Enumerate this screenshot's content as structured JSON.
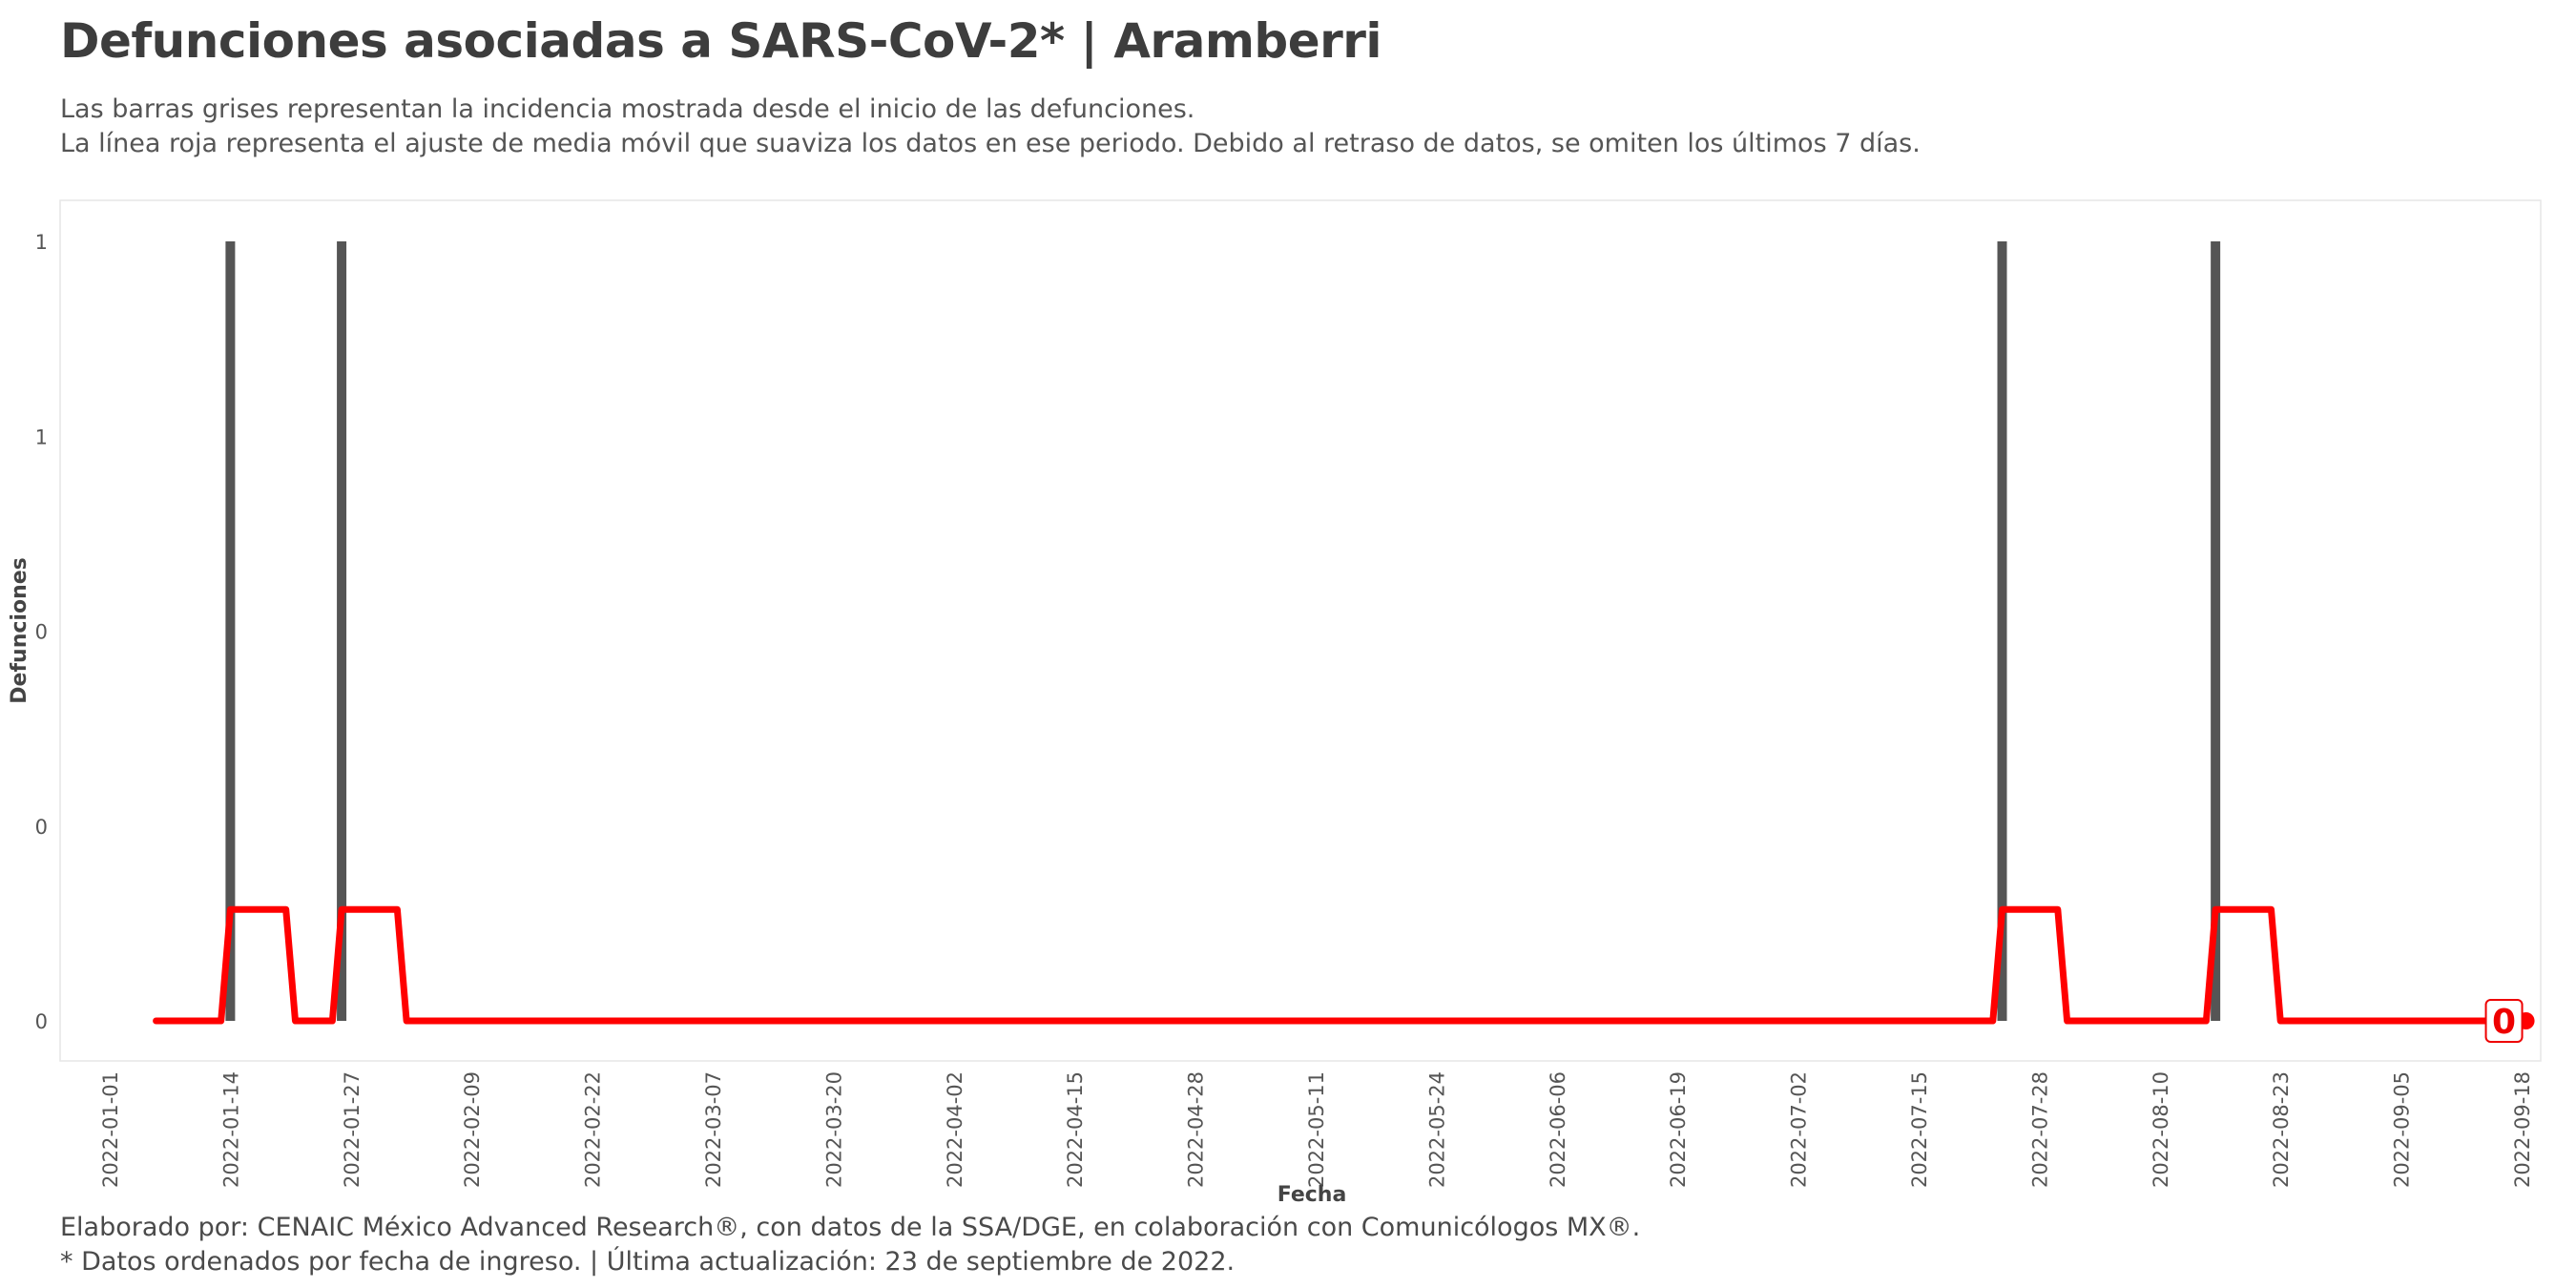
{
  "header": {
    "title": "Defunciones asociadas a SARS-CoV-2* | Aramberri",
    "subtitle_line1": "Las barras grises representan la incidencia mostrada desde el inicio de las defunciones.",
    "subtitle_line2": "La línea roja representa el ajuste de media móvil que suaviza los datos en ese periodo. Debido al retraso de datos, se omiten los últimos 7 días."
  },
  "footer": {
    "caption_line1": "Elaborado por: CENAIC México Advanced Research®, con datos de la SSA/DGE, en colaboración con Comunicólogos MX®.",
    "caption_line2": "* Datos ordenados por fecha de ingreso. | Última actualización: 23 de septiembre de 2022."
  },
  "chart_data": {
    "type": "bar",
    "xlabel": "Fecha",
    "ylabel": "Defunciones",
    "x_range": [
      "2022-01-01",
      "2022-09-18"
    ],
    "y_range": [
      0,
      1
    ],
    "y_tick_values": [
      0,
      0.25,
      0.5,
      0.75,
      1
    ],
    "y_tick_labels": [
      "0",
      "0",
      "0",
      "1",
      "1"
    ],
    "x_tick_labels": [
      "2022-01-01",
      "2022-01-14",
      "2022-01-27",
      "2022-02-09",
      "2022-02-22",
      "2022-03-07",
      "2022-03-20",
      "2022-04-02",
      "2022-04-15",
      "2022-04-28",
      "2022-05-11",
      "2022-05-24",
      "2022-06-06",
      "2022-06-19",
      "2022-07-02",
      "2022-07-15",
      "2022-07-28",
      "2022-08-10",
      "2022-08-23",
      "2022-09-05",
      "2022-09-18"
    ],
    "grid": false,
    "colors": {
      "bars": "#555555",
      "line": "#ff0000",
      "label": "#ee0000"
    },
    "series": [
      {
        "kind": "bar",
        "points": [
          {
            "x": "2022-01-14",
            "y": 1
          },
          {
            "x": "2022-01-26",
            "y": 1
          },
          {
            "x": "2022-07-24",
            "y": 1
          },
          {
            "x": "2022-08-16",
            "y": 1
          }
        ]
      },
      {
        "kind": "line",
        "points": [
          {
            "x": "2022-01-06",
            "y": 0
          },
          {
            "x": "2022-01-13",
            "y": 0
          },
          {
            "x": "2022-01-14",
            "y": 0.143
          },
          {
            "x": "2022-01-20",
            "y": 0.143
          },
          {
            "x": "2022-01-21",
            "y": 0
          },
          {
            "x": "2022-01-25",
            "y": 0
          },
          {
            "x": "2022-01-26",
            "y": 0.143
          },
          {
            "x": "2022-02-01",
            "y": 0.143
          },
          {
            "x": "2022-02-02",
            "y": 0
          },
          {
            "x": "2022-07-23",
            "y": 0
          },
          {
            "x": "2022-07-24",
            "y": 0.143
          },
          {
            "x": "2022-07-30",
            "y": 0.143
          },
          {
            "x": "2022-07-31",
            "y": 0
          },
          {
            "x": "2022-08-15",
            "y": 0
          },
          {
            "x": "2022-08-16",
            "y": 0.143
          },
          {
            "x": "2022-08-22",
            "y": 0.143
          },
          {
            "x": "2022-08-23",
            "y": 0
          },
          {
            "x": "2022-09-16",
            "y": 0
          }
        ]
      }
    ],
    "end_label": {
      "x": "2022-09-16",
      "y": 0,
      "text": "0"
    }
  }
}
